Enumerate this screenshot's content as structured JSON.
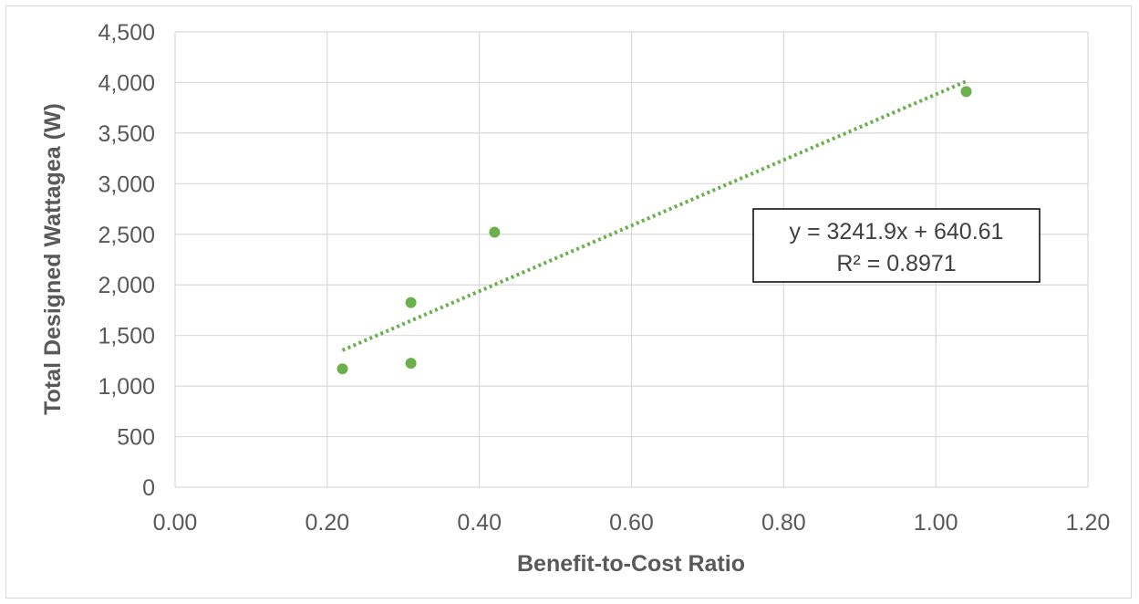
{
  "chart_data": {
    "type": "scatter",
    "title": "",
    "xlabel": "Benefit-to-Cost Ratio",
    "ylabel": "Total Designed Wattagea (W)",
    "xlim": [
      0,
      1.2
    ],
    "ylim": [
      0,
      4500
    ],
    "x_ticks": [
      "0.00",
      "0.20",
      "0.40",
      "0.60",
      "0.80",
      "1.00",
      "1.20"
    ],
    "y_ticks": [
      "0",
      "500",
      "1,000",
      "1,500",
      "2,000",
      "2,500",
      "3,000",
      "3,500",
      "4,000",
      "4,500"
    ],
    "grid": true,
    "points": [
      {
        "x": 0.22,
        "y": 1170
      },
      {
        "x": 0.31,
        "y": 1225
      },
      {
        "x": 0.31,
        "y": 1825
      },
      {
        "x": 0.42,
        "y": 2520
      },
      {
        "x": 1.04,
        "y": 3910
      }
    ],
    "trendline": {
      "type": "linear",
      "slope": 3241.9,
      "intercept": 640.61,
      "x_range": [
        0.22,
        1.04
      ],
      "equation_label": "y = 3241.9x + 640.61",
      "r2_label": "R² = 0.8971"
    },
    "colors": {
      "marker": "#6ab04c",
      "trendline": "#6ab04c",
      "grid": "#d9d9d9",
      "text": "#595959"
    }
  }
}
